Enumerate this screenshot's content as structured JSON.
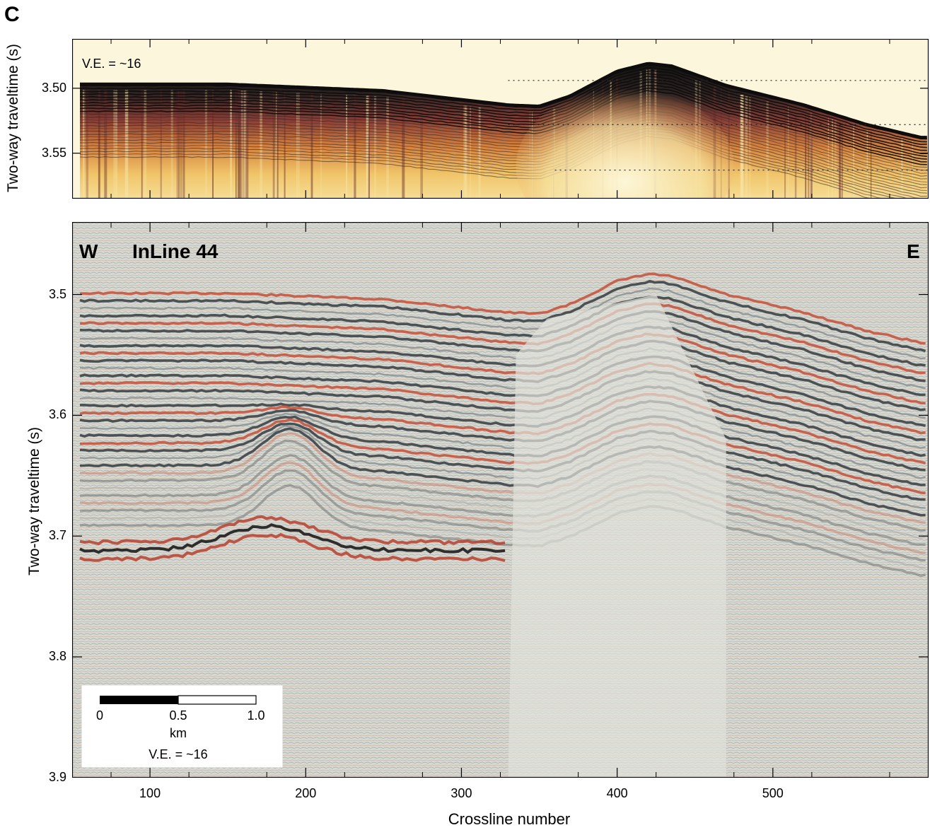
{
  "figure": {
    "panel_letter": "C",
    "ve_label": "V.E. = ~16"
  },
  "top_panel": {
    "ylabel": "Two-way traveltime (s)",
    "yticks": [
      "3.50",
      "3.55"
    ],
    "ytick_values": [
      3.5,
      3.55
    ],
    "ylim": [
      3.585,
      3.462
    ],
    "xlim": [
      50,
      600
    ],
    "reference_lines": [
      3.494,
      3.528,
      3.563
    ],
    "colors": {
      "dark": "#171515",
      "mid": "#7a3c3a",
      "warm": "#e0a04a",
      "light": "#fbf2cc",
      "bg": "#fbf6dc"
    }
  },
  "bottom_panel": {
    "label_left": "W",
    "label_title": "InLine 44",
    "label_right": "E",
    "ylabel": "Two-way traveltime (s)",
    "yticks": [
      "3.5",
      "3.6",
      "3.7",
      "3.8",
      "3.9"
    ],
    "ytick_values": [
      3.5,
      3.6,
      3.7,
      3.8,
      3.9
    ],
    "ylim": [
      3.9,
      3.44
    ],
    "xlabel": "Crossline number",
    "xticks": [
      "100",
      "200",
      "300",
      "400",
      "500"
    ],
    "xtick_values": [
      100,
      200,
      300,
      400,
      500
    ],
    "xlim": [
      50,
      600
    ],
    "colors": {
      "red": "#c5553f",
      "dark": "#3d4448",
      "grey": "#8e9596",
      "bg": "#d7dad3"
    }
  },
  "seafloor": {
    "x": [
      55,
      150,
      250,
      330,
      350,
      370,
      400,
      420,
      435,
      470,
      520,
      560,
      595
    ],
    "t": [
      3.497,
      3.497,
      3.502,
      3.513,
      3.514,
      3.506,
      3.487,
      3.481,
      3.483,
      3.498,
      3.513,
      3.528,
      3.538
    ]
  },
  "scale_bar": {
    "ticks": [
      "0",
      "0.5",
      "1.0"
    ],
    "unit": "km",
    "ve_label": "V.E. = ~16"
  }
}
